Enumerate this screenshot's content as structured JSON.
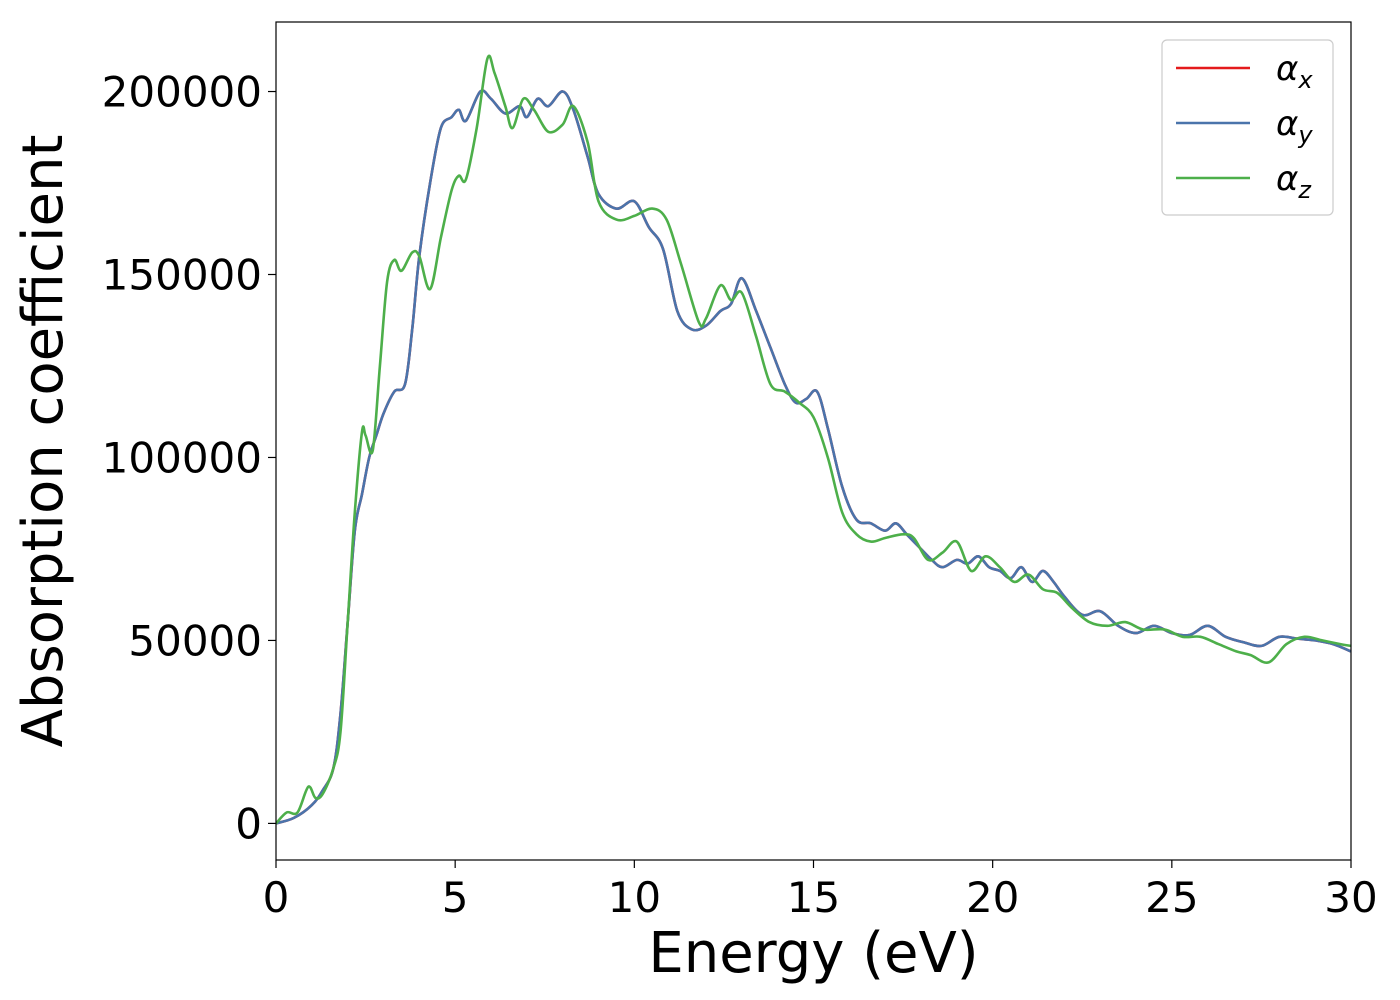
{
  "chart_data": {
    "type": "line",
    "title": "",
    "xlabel": "Energy (eV)",
    "ylabel": "Absorption coefficient",
    "xlim": [
      0,
      30
    ],
    "ylim": [
      -10000,
      219000
    ],
    "xticks": [
      0,
      5,
      10,
      15,
      20,
      25,
      30
    ],
    "yticks": [
      0,
      50000,
      100000,
      150000,
      200000
    ],
    "grid": false,
    "legend_position": "top-right",
    "series": [
      {
        "name": "α",
        "subscript": "x",
        "color": "#e41a1c",
        "x": [
          0,
          0.5,
          1.0,
          1.3,
          1.6,
          1.8,
          2.0,
          2.2,
          2.4,
          2.6,
          2.8,
          3.0,
          3.3,
          3.6,
          3.8,
          4.0,
          4.3,
          4.6,
          4.9,
          5.1,
          5.3,
          5.7,
          6.0,
          6.4,
          6.8,
          7.0,
          7.3,
          7.6,
          8.0,
          8.3,
          8.7,
          9.0,
          9.5,
          10.0,
          10.4,
          10.8,
          11.2,
          11.6,
          12.0,
          12.4,
          12.7,
          13.0,
          13.4,
          13.8,
          14.2,
          14.5,
          14.8,
          15.1,
          15.4,
          15.8,
          16.2,
          16.6,
          17.0,
          17.3,
          17.6,
          18.0,
          18.3,
          18.6,
          19.0,
          19.3,
          19.6,
          19.9,
          20.2,
          20.5,
          20.8,
          21.1,
          21.4,
          21.7,
          22.0,
          22.5,
          23.0,
          23.5,
          24.0,
          24.5,
          25.0,
          25.5,
          26.0,
          26.5,
          27.0,
          27.5,
          28.0,
          28.5,
          29.0,
          29.5,
          30.0
        ],
        "y": [
          0,
          1500,
          5000,
          9000,
          15000,
          30000,
          55000,
          80000,
          90000,
          100000,
          106000,
          112000,
          118000,
          120000,
          135000,
          155000,
          175000,
          190000,
          193000,
          195000,
          192000,
          200000,
          198000,
          194000,
          196000,
          193000,
          198000,
          196000,
          200000,
          195000,
          182000,
          172000,
          168000,
          170000,
          163000,
          157000,
          140000,
          135000,
          136000,
          140000,
          142000,
          149000,
          140000,
          130000,
          120000,
          115000,
          116000,
          118000,
          108000,
          92000,
          83000,
          82000,
          80000,
          82000,
          79000,
          75000,
          72000,
          70000,
          72000,
          71000,
          73000,
          70000,
          69000,
          67000,
          70000,
          66000,
          69000,
          66000,
          62000,
          57000,
          58000,
          54000,
          52000,
          54000,
          52000,
          51500,
          54000,
          51000,
          49500,
          48500,
          51000,
          50500,
          50000,
          49000,
          47000
        ]
      },
      {
        "name": "α",
        "subscript": "y",
        "color": "#4a74ab",
        "x": [
          0,
          0.5,
          1.0,
          1.3,
          1.6,
          1.8,
          2.0,
          2.2,
          2.4,
          2.6,
          2.8,
          3.0,
          3.3,
          3.6,
          3.8,
          4.0,
          4.3,
          4.6,
          4.9,
          5.1,
          5.3,
          5.7,
          6.0,
          6.4,
          6.8,
          7.0,
          7.3,
          7.6,
          8.0,
          8.3,
          8.7,
          9.0,
          9.5,
          10.0,
          10.4,
          10.8,
          11.2,
          11.6,
          12.0,
          12.4,
          12.7,
          13.0,
          13.4,
          13.8,
          14.2,
          14.5,
          14.8,
          15.1,
          15.4,
          15.8,
          16.2,
          16.6,
          17.0,
          17.3,
          17.6,
          18.0,
          18.3,
          18.6,
          19.0,
          19.3,
          19.6,
          19.9,
          20.2,
          20.5,
          20.8,
          21.1,
          21.4,
          21.7,
          22.0,
          22.5,
          23.0,
          23.5,
          24.0,
          24.5,
          25.0,
          25.5,
          26.0,
          26.5,
          27.0,
          27.5,
          28.0,
          28.5,
          29.0,
          29.5,
          30.0
        ],
        "y": [
          0,
          1500,
          5000,
          9000,
          15000,
          30000,
          55000,
          80000,
          90000,
          100000,
          106000,
          112000,
          118000,
          120000,
          135000,
          155000,
          175000,
          190000,
          193000,
          195000,
          192000,
          200000,
          198000,
          194000,
          196000,
          193000,
          198000,
          196000,
          200000,
          195000,
          182000,
          172000,
          168000,
          170000,
          163000,
          157000,
          140000,
          135000,
          136000,
          140000,
          142000,
          149000,
          140000,
          130000,
          120000,
          115000,
          116000,
          118000,
          108000,
          92000,
          83000,
          82000,
          80000,
          82000,
          79000,
          75000,
          72000,
          70000,
          72000,
          71000,
          73000,
          70000,
          69000,
          67000,
          70000,
          66000,
          69000,
          66000,
          62000,
          57000,
          58000,
          54000,
          52000,
          54000,
          52000,
          51500,
          54000,
          51000,
          49500,
          48500,
          51000,
          50500,
          50000,
          49000,
          47000
        ]
      },
      {
        "name": "α",
        "subscript": "z",
        "color": "#4daf4a",
        "x": [
          0,
          0.3,
          0.6,
          0.9,
          1.1,
          1.3,
          1.6,
          1.8,
          2.0,
          2.2,
          2.4,
          2.5,
          2.7,
          2.9,
          3.1,
          3.3,
          3.5,
          3.8,
          4.0,
          4.3,
          4.6,
          4.9,
          5.1,
          5.3,
          5.6,
          5.9,
          6.1,
          6.4,
          6.6,
          6.9,
          7.2,
          7.6,
          8.0,
          8.3,
          8.7,
          9.0,
          9.5,
          10.0,
          10.5,
          10.9,
          11.3,
          11.8,
          12.0,
          12.4,
          12.7,
          13.0,
          13.4,
          13.8,
          14.2,
          14.6,
          15.0,
          15.4,
          15.8,
          16.2,
          16.6,
          17.0,
          17.5,
          17.8,
          18.2,
          18.6,
          19.0,
          19.4,
          19.8,
          20.2,
          20.6,
          21.0,
          21.4,
          21.8,
          22.2,
          22.7,
          23.2,
          23.7,
          24.2,
          24.8,
          25.3,
          25.8,
          26.3,
          26.8,
          27.2,
          27.7,
          28.2,
          28.7,
          29.2,
          29.7,
          30.0
        ],
        "y": [
          0,
          3000,
          3000,
          10000,
          7000,
          8000,
          15000,
          25000,
          55000,
          85000,
          107000,
          106000,
          102000,
          125000,
          148000,
          154000,
          151000,
          156000,
          155000,
          146000,
          160000,
          173000,
          177000,
          176000,
          190000,
          209000,
          205000,
          196000,
          190000,
          198000,
          195000,
          189000,
          191000,
          196000,
          186000,
          170000,
          165000,
          166000,
          168000,
          165000,
          153000,
          137000,
          138000,
          147000,
          143000,
          145000,
          133000,
          120000,
          118000,
          115000,
          111000,
          100000,
          85000,
          79000,
          77000,
          78000,
          79000,
          78000,
          72000,
          74000,
          77000,
          69000,
          73000,
          70000,
          66000,
          68000,
          64000,
          63000,
          59000,
          55000,
          54000,
          55000,
          53000,
          53000,
          51000,
          51000,
          49000,
          47000,
          46000,
          44000,
          49000,
          51000,
          50000,
          49000,
          48500
        ]
      }
    ]
  }
}
